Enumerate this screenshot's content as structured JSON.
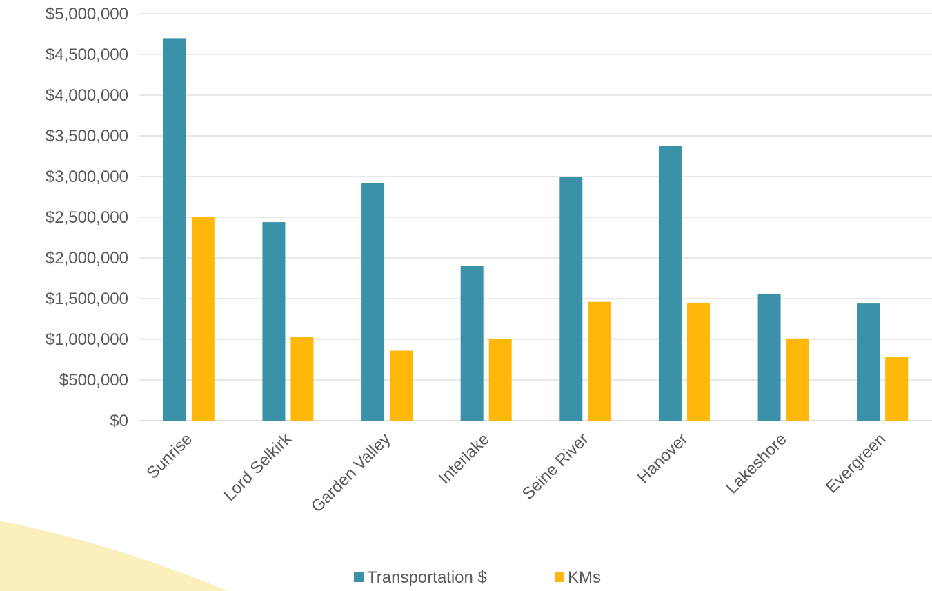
{
  "chart_data": {
    "type": "bar",
    "title": "",
    "xlabel": "",
    "ylabel": "",
    "categories": [
      "Sunrise",
      "Lord Selkirk",
      "Garden Valley",
      "Interlake",
      "Seine River",
      "Hanover",
      "Lakeshore",
      "Evergreen"
    ],
    "series": [
      {
        "name": "Transportation $",
        "color": "#3A91A8",
        "values": [
          4700000,
          2440000,
          2920000,
          1900000,
          3000000,
          3380000,
          1560000,
          1440000
        ]
      },
      {
        "name": "KMs",
        "color": "#FFB80A",
        "values": [
          2500000,
          1030000,
          860000,
          1000000,
          1460000,
          1450000,
          1010000,
          780000
        ]
      }
    ],
    "ylim": [
      0,
      5000000
    ],
    "yticks": [
      0,
      500000,
      1000000,
      1500000,
      2000000,
      2500000,
      3000000,
      3500000,
      4000000,
      4500000,
      5000000
    ],
    "ytick_labels": [
      "$0",
      "$500,000",
      "$1,000,000",
      "$1,500,000",
      "$2,000,000",
      "$2,500,000",
      "$3,000,000",
      "$3,500,000",
      "$4,000,000",
      "$4,500,000",
      "$5,000,000"
    ],
    "grid": true,
    "legend": "bottom"
  }
}
